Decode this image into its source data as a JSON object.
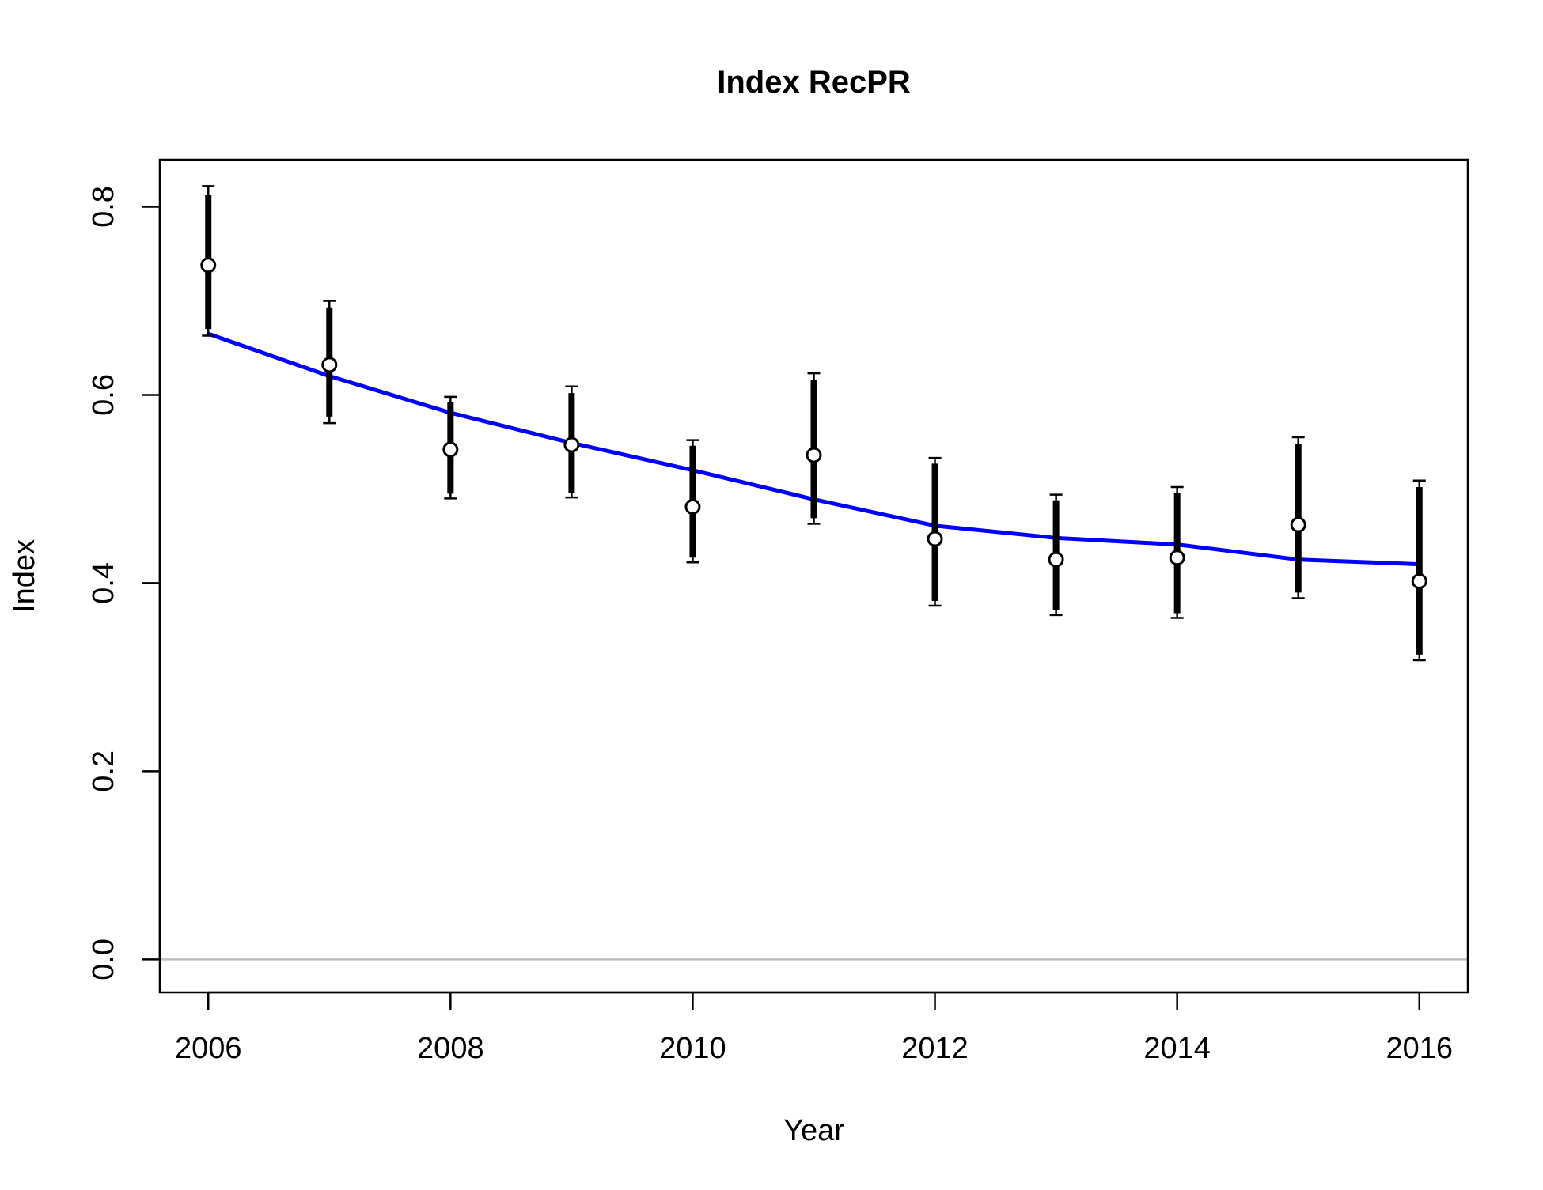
{
  "chart_data": {
    "type": "scatter",
    "title": "Index RecPR",
    "xlabel": "Year",
    "ylabel": "Index",
    "xlim": [
      2005.6,
      2016.4
    ],
    "ylim": [
      -0.035,
      0.85
    ],
    "x_ticks": [
      2006,
      2008,
      2010,
      2012,
      2014,
      2016
    ],
    "x_tick_labels": [
      "2006",
      "2008",
      "2010",
      "2012",
      "2014",
      "2016"
    ],
    "y_ticks": [
      0.0,
      0.2,
      0.4,
      0.6,
      0.8
    ],
    "y_tick_labels": [
      "0.0",
      "0.2",
      "0.4",
      "0.6",
      "0.8"
    ],
    "grid": false,
    "reference_line": {
      "y": 0.0,
      "color": "#bebebe"
    },
    "colors": {
      "observed": "#000000",
      "fitted": "#0000ff",
      "point_fill": "#ffffff"
    },
    "series": [
      {
        "kind": "observed_with_intervals",
        "x": [
          2006,
          2007,
          2008,
          2009,
          2010,
          2011,
          2012,
          2013,
          2014,
          2015,
          2016
        ],
        "y": [
          0.738,
          0.632,
          0.542,
          0.547,
          0.481,
          0.536,
          0.447,
          0.425,
          0.427,
          0.462,
          0.402
        ],
        "outer_lower": [
          0.663,
          0.57,
          0.49,
          0.491,
          0.422,
          0.463,
          0.376,
          0.366,
          0.363,
          0.384,
          0.318
        ],
        "outer_upper": [
          0.822,
          0.7,
          0.598,
          0.609,
          0.552,
          0.623,
          0.533,
          0.494,
          0.502,
          0.555,
          0.509
        ],
        "inner_lower": [
          0.67,
          0.577,
          0.495,
          0.496,
          0.427,
          0.469,
          0.381,
          0.371,
          0.368,
          0.39,
          0.324
        ],
        "inner_upper": [
          0.813,
          0.693,
          0.592,
          0.602,
          0.546,
          0.616,
          0.527,
          0.488,
          0.496,
          0.548,
          0.502
        ]
      },
      {
        "kind": "fitted_line",
        "x": [
          2006,
          2007,
          2008,
          2009,
          2010,
          2011,
          2012,
          2013,
          2014,
          2015,
          2016
        ],
        "y": [
          0.665,
          0.62,
          0.581,
          0.549,
          0.52,
          0.489,
          0.461,
          0.448,
          0.441,
          0.425,
          0.42
        ]
      }
    ]
  }
}
